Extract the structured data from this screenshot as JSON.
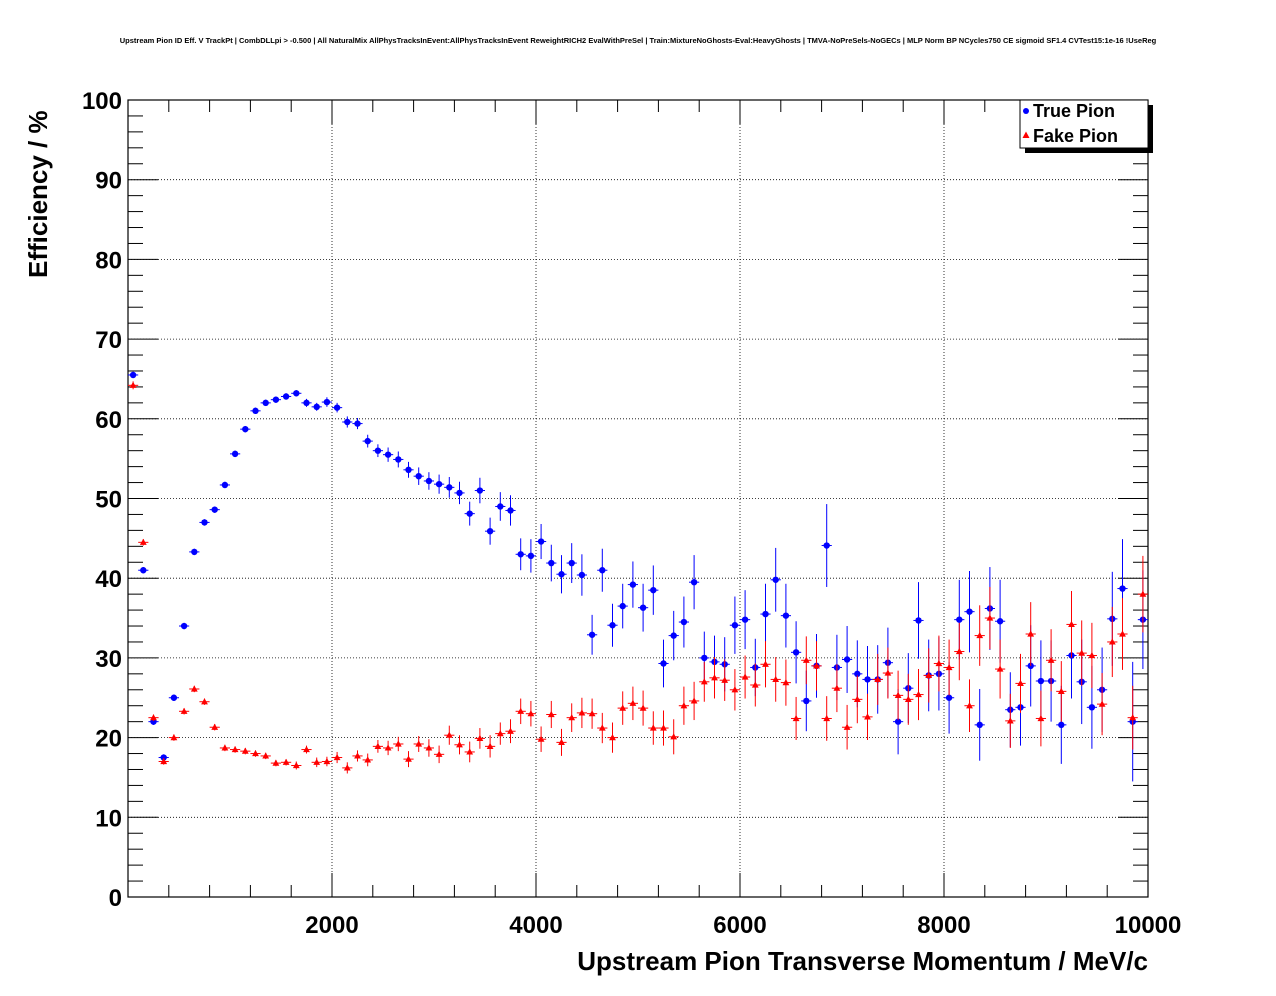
{
  "chart_data": {
    "type": "scatter",
    "title": "Upstream Pion ID Eff. V TrackPt | CombDLLpi > -0.500 | All NaturalMix AllPhysTracksInEvent:AllPhysTracksInEvent ReweightRICH2 EvalWithPreSel | Train:MixtureNoGhosts-Eval:HeavyGhosts | TMVA-NoPreSels-NoGECs | MLP Norm BP NCycles750 CE sigmoid SF1.4 CVTest15:1e-16 !UseReg",
    "xlabel": "Upstream Pion Transverse Momentum / MeV/c",
    "ylabel": "Efficiency / %",
    "xlim": [
      0,
      10000
    ],
    "ylim": [
      0,
      100
    ],
    "x_ticks": [
      2000,
      4000,
      6000,
      8000,
      10000
    ],
    "x_tick_labels": [
      "2000",
      "4000",
      "6000",
      "8000",
      "10000"
    ],
    "y_ticks": [
      0,
      10,
      20,
      30,
      40,
      50,
      60,
      70,
      80,
      90,
      100
    ],
    "y_tick_labels": [
      "0",
      "10",
      "20",
      "30",
      "40",
      "50",
      "60",
      "70",
      "80",
      "90",
      "100"
    ],
    "grid": true,
    "legend_position": "top-right",
    "bin_half_width": 50,
    "series": [
      {
        "name": "True Pion",
        "color": "#0000ff",
        "marker": "circle",
        "points": [
          [
            50,
            65.5,
            0.4
          ],
          [
            150,
            41.0,
            0.4
          ],
          [
            250,
            22.0,
            0.4
          ],
          [
            350,
            17.5,
            0.4
          ],
          [
            450,
            25.0,
            0.4
          ],
          [
            550,
            34.0,
            0.4
          ],
          [
            650,
            43.3,
            0.4
          ],
          [
            750,
            47.0,
            0.4
          ],
          [
            850,
            48.6,
            0.4
          ],
          [
            950,
            51.7,
            0.4
          ],
          [
            1050,
            55.6,
            0.4
          ],
          [
            1150,
            58.7,
            0.4
          ],
          [
            1250,
            61.0,
            0.4
          ],
          [
            1350,
            62.0,
            0.4
          ],
          [
            1450,
            62.4,
            0.4
          ],
          [
            1550,
            62.8,
            0.4
          ],
          [
            1650,
            63.2,
            0.4
          ],
          [
            1750,
            62.0,
            0.5
          ],
          [
            1850,
            61.5,
            0.5
          ],
          [
            1950,
            62.1,
            0.6
          ],
          [
            2050,
            61.4,
            0.6
          ],
          [
            2150,
            59.6,
            0.7
          ],
          [
            2250,
            59.4,
            0.7
          ],
          [
            2350,
            57.2,
            0.8
          ],
          [
            2450,
            56.0,
            0.8
          ],
          [
            2550,
            55.5,
            0.9
          ],
          [
            2650,
            54.9,
            1.0
          ],
          [
            2750,
            53.6,
            1.0
          ],
          [
            2850,
            52.8,
            1.1
          ],
          [
            2950,
            52.2,
            1.1
          ],
          [
            3050,
            51.8,
            1.2
          ],
          [
            3150,
            51.4,
            1.3
          ],
          [
            3250,
            50.7,
            1.4
          ],
          [
            3350,
            48.1,
            1.5
          ],
          [
            3450,
            51.0,
            1.6
          ],
          [
            3550,
            45.9,
            1.7
          ],
          [
            3650,
            49.0,
            1.8
          ],
          [
            3750,
            48.5,
            1.9
          ],
          [
            3850,
            43.0,
            2.0
          ],
          [
            3950,
            42.8,
            2.1
          ],
          [
            4050,
            44.6,
            2.2
          ],
          [
            4150,
            41.9,
            2.3
          ],
          [
            4250,
            40.5,
            2.4
          ],
          [
            4350,
            41.9,
            2.5
          ],
          [
            4450,
            40.4,
            2.6
          ],
          [
            4550,
            32.9,
            2.5
          ],
          [
            4650,
            41.0,
            2.7
          ],
          [
            4750,
            34.1,
            2.7
          ],
          [
            4850,
            36.5,
            2.8
          ],
          [
            4950,
            39.2,
            2.9
          ],
          [
            5050,
            36.3,
            3.0
          ],
          [
            5150,
            38.5,
            3.1
          ],
          [
            5250,
            29.3,
            3.0
          ],
          [
            5350,
            32.8,
            3.1
          ],
          [
            5450,
            34.5,
            3.2
          ],
          [
            5550,
            39.5,
            3.4
          ],
          [
            5650,
            30.0,
            3.3
          ],
          [
            5750,
            29.5,
            3.3
          ],
          [
            5850,
            29.2,
            3.4
          ],
          [
            5950,
            34.1,
            3.6
          ],
          [
            6050,
            34.8,
            3.7
          ],
          [
            6150,
            28.8,
            3.6
          ],
          [
            6250,
            35.5,
            3.8
          ],
          [
            6350,
            39.8,
            4.0
          ],
          [
            6450,
            35.3,
            4.0
          ],
          [
            6550,
            30.7,
            3.9
          ],
          [
            6650,
            24.6,
            3.8
          ],
          [
            6750,
            29.0,
            4.0
          ],
          [
            6850,
            44.1,
            5.2
          ],
          [
            6950,
            28.8,
            4.1
          ],
          [
            7050,
            29.8,
            4.2
          ],
          [
            7150,
            28.0,
            4.2
          ],
          [
            7250,
            27.3,
            4.2
          ],
          [
            7350,
            27.3,
            4.3
          ],
          [
            7450,
            29.4,
            4.4
          ],
          [
            7550,
            22.0,
            4.1
          ],
          [
            7650,
            26.2,
            4.4
          ],
          [
            7750,
            34.7,
            4.8
          ],
          [
            7850,
            27.8,
            4.5
          ],
          [
            7950,
            28.0,
            4.6
          ],
          [
            8050,
            25.0,
            4.5
          ],
          [
            8150,
            34.8,
            5.0
          ],
          [
            8250,
            35.8,
            5.1
          ],
          [
            8350,
            21.6,
            4.5
          ],
          [
            8450,
            36.2,
            5.2
          ],
          [
            8550,
            34.6,
            5.2
          ],
          [
            8650,
            23.5,
            4.7
          ],
          [
            8750,
            23.8,
            4.8
          ],
          [
            8850,
            29.0,
            5.1
          ],
          [
            8950,
            27.1,
            5.1
          ],
          [
            9050,
            27.1,
            5.1
          ],
          [
            9150,
            21.6,
            4.9
          ],
          [
            9250,
            30.3,
            5.4
          ],
          [
            9350,
            27.0,
            5.3
          ],
          [
            9450,
            23.8,
            5.2
          ],
          [
            9550,
            26.0,
            5.3
          ],
          [
            9650,
            34.9,
            5.9
          ],
          [
            9750,
            38.7,
            6.2
          ],
          [
            9850,
            22.0,
            7.5
          ],
          [
            9950,
            34.8,
            6.2
          ]
        ]
      },
      {
        "name": "Fake Pion",
        "color": "#ff0000",
        "marker": "triangle",
        "points": [
          [
            50,
            64.2,
            0.5
          ],
          [
            150,
            44.5,
            0.4
          ],
          [
            250,
            22.5,
            0.4
          ],
          [
            350,
            17.0,
            0.4
          ],
          [
            450,
            20.0,
            0.4
          ],
          [
            550,
            23.3,
            0.4
          ],
          [
            650,
            26.1,
            0.4
          ],
          [
            750,
            24.5,
            0.4
          ],
          [
            850,
            21.3,
            0.4
          ],
          [
            950,
            18.7,
            0.4
          ],
          [
            1050,
            18.5,
            0.4
          ],
          [
            1150,
            18.3,
            0.4
          ],
          [
            1250,
            18.0,
            0.4
          ],
          [
            1350,
            17.7,
            0.4
          ],
          [
            1450,
            16.8,
            0.4
          ],
          [
            1550,
            16.9,
            0.4
          ],
          [
            1650,
            16.5,
            0.5
          ],
          [
            1750,
            18.5,
            0.5
          ],
          [
            1850,
            16.9,
            0.6
          ],
          [
            1950,
            17.0,
            0.6
          ],
          [
            2050,
            17.5,
            0.7
          ],
          [
            2150,
            16.2,
            0.7
          ],
          [
            2250,
            17.7,
            0.7
          ],
          [
            2350,
            17.2,
            0.8
          ],
          [
            2450,
            18.9,
            0.8
          ],
          [
            2550,
            18.7,
            0.9
          ],
          [
            2650,
            19.2,
            0.9
          ],
          [
            2750,
            17.3,
            1.0
          ],
          [
            2850,
            19.2,
            1.0
          ],
          [
            2950,
            18.7,
            1.1
          ],
          [
            3050,
            17.9,
            1.1
          ],
          [
            3150,
            20.3,
            1.2
          ],
          [
            3250,
            19.1,
            1.2
          ],
          [
            3350,
            18.2,
            1.3
          ],
          [
            3450,
            19.9,
            1.3
          ],
          [
            3550,
            18.9,
            1.4
          ],
          [
            3650,
            20.5,
            1.4
          ],
          [
            3750,
            20.8,
            1.5
          ],
          [
            3850,
            23.3,
            1.6
          ],
          [
            3950,
            23.0,
            1.6
          ],
          [
            4050,
            19.8,
            1.6
          ],
          [
            4150,
            22.9,
            1.7
          ],
          [
            4250,
            19.4,
            1.7
          ],
          [
            4350,
            22.5,
            1.8
          ],
          [
            4450,
            23.1,
            1.9
          ],
          [
            4550,
            23.0,
            1.9
          ],
          [
            4650,
            21.2,
            1.9
          ],
          [
            4750,
            20.0,
            1.9
          ],
          [
            4850,
            23.7,
            2.1
          ],
          [
            4950,
            24.3,
            2.1
          ],
          [
            5050,
            23.7,
            2.2
          ],
          [
            5150,
            21.2,
            2.1
          ],
          [
            5250,
            21.2,
            2.2
          ],
          [
            5350,
            20.1,
            2.2
          ],
          [
            5450,
            24.0,
            2.4
          ],
          [
            5550,
            24.6,
            2.4
          ],
          [
            5650,
            27.0,
            2.5
          ],
          [
            5750,
            27.5,
            2.6
          ],
          [
            5850,
            27.2,
            2.6
          ],
          [
            5950,
            26.0,
            2.6
          ],
          [
            6050,
            27.6,
            2.7
          ],
          [
            6150,
            26.6,
            2.7
          ],
          [
            6250,
            29.2,
            2.9
          ],
          [
            6350,
            27.3,
            2.8
          ],
          [
            6450,
            26.9,
            2.9
          ],
          [
            6550,
            22.4,
            2.7
          ],
          [
            6650,
            29.7,
            3.0
          ],
          [
            6750,
            29.0,
            3.1
          ],
          [
            6850,
            22.4,
            2.8
          ],
          [
            6950,
            26.2,
            3.0
          ],
          [
            7050,
            21.3,
            2.8
          ],
          [
            7150,
            24.8,
            3.0
          ],
          [
            7250,
            22.6,
            2.9
          ],
          [
            7350,
            27.3,
            3.2
          ],
          [
            7450,
            28.1,
            3.2
          ],
          [
            7550,
            25.3,
            3.1
          ],
          [
            7650,
            24.8,
            3.2
          ],
          [
            7750,
            25.4,
            3.2
          ],
          [
            7850,
            27.8,
            3.4
          ],
          [
            7950,
            29.3,
            3.5
          ],
          [
            8050,
            28.8,
            3.5
          ],
          [
            8150,
            30.8,
            3.6
          ],
          [
            8250,
            24.0,
            3.3
          ],
          [
            8350,
            32.8,
            3.8
          ],
          [
            8450,
            35.0,
            3.9
          ],
          [
            8550,
            28.6,
            3.7
          ],
          [
            8650,
            22.1,
            3.4
          ],
          [
            8750,
            26.8,
            3.7
          ],
          [
            8850,
            33.0,
            4.0
          ],
          [
            8950,
            22.4,
            3.5
          ],
          [
            9050,
            29.7,
            3.9
          ],
          [
            9150,
            25.8,
            3.8
          ],
          [
            9250,
            34.2,
            4.2
          ],
          [
            9350,
            30.6,
            4.1
          ],
          [
            9450,
            30.3,
            4.1
          ],
          [
            9550,
            24.2,
            3.9
          ],
          [
            9650,
            32.0,
            4.4
          ],
          [
            9750,
            33.0,
            4.5
          ],
          [
            9850,
            22.5,
            4.0
          ],
          [
            9950,
            38.0,
            4.8
          ]
        ]
      }
    ]
  }
}
